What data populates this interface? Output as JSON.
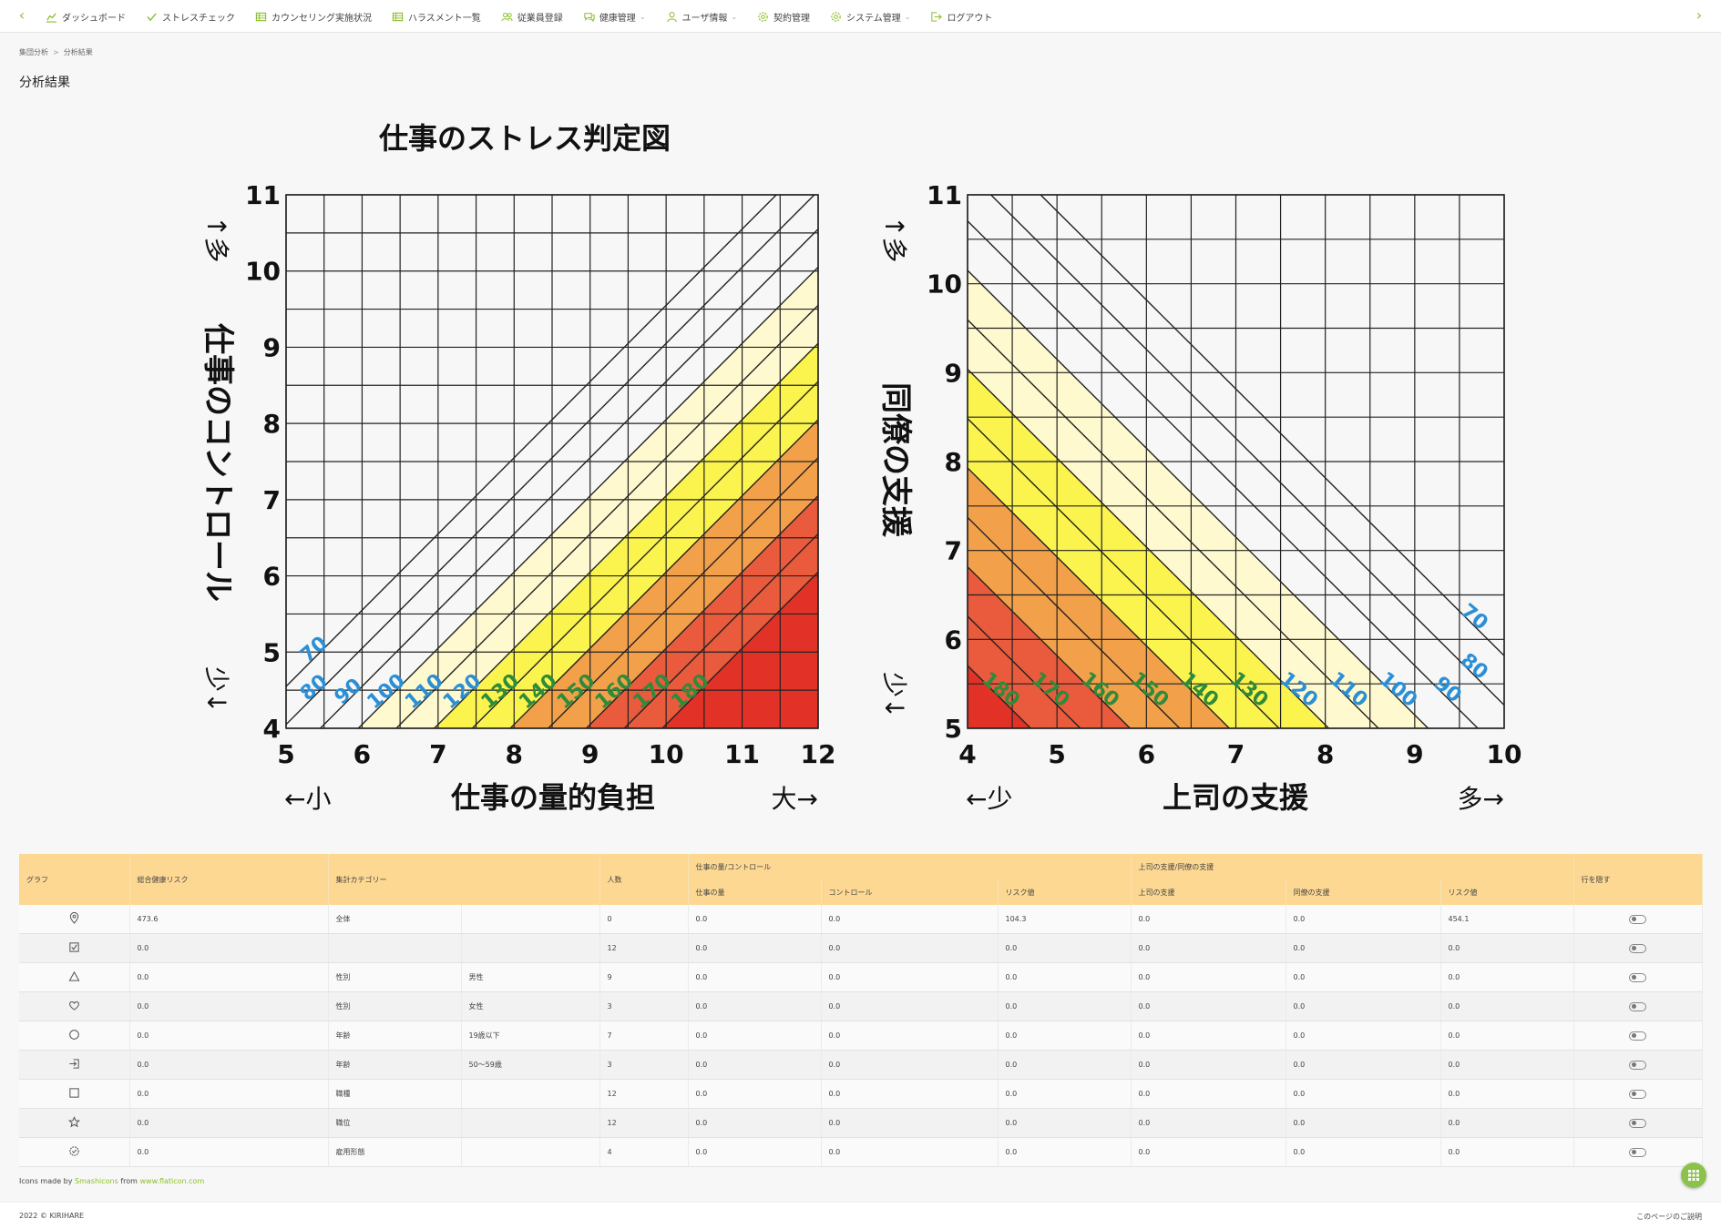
{
  "nav": {
    "prev_icon": "chevron-left-icon",
    "next_icon": "chevron-right-icon",
    "accent": "#8bbf2a",
    "items": [
      {
        "label": "ダッシュボード",
        "icon": "chart-icon",
        "caret": false
      },
      {
        "label": "ストレスチェック",
        "icon": "check-icon",
        "caret": false
      },
      {
        "label": "カウンセリング実施状況",
        "icon": "table-icon",
        "caret": false
      },
      {
        "label": "ハラスメント一覧",
        "icon": "table-icon",
        "caret": false
      },
      {
        "label": "従業員登録",
        "icon": "users-icon",
        "caret": false
      },
      {
        "label": "健康管理",
        "icon": "chat-icon",
        "caret": true
      },
      {
        "label": "ユーザ情報",
        "icon": "user-icon",
        "caret": true
      },
      {
        "label": "契約管理",
        "icon": "gear-icon",
        "caret": false
      },
      {
        "label": "システム管理",
        "icon": "gear-icon",
        "caret": true
      },
      {
        "label": "ログアウト",
        "icon": "logout-icon",
        "caret": false
      }
    ]
  },
  "breadcrumb": {
    "items": [
      "集団分析",
      "分析結果"
    ],
    "separator": ">"
  },
  "page": {
    "title": "分析結果"
  },
  "figure": {
    "title": "仕事のストレス判定図",
    "left": {
      "y_label": "仕事のコントロール",
      "y_more": "↑多",
      "y_less": "少↓",
      "x_label": "仕事の量的負担",
      "x_less": "←小",
      "x_more": "大→"
    },
    "right": {
      "y_label": "同僚の支援",
      "y_more": "↑多",
      "y_less": "少↓",
      "x_label": "上司の支援",
      "x_less": "←少",
      "x_more": "多→"
    }
  },
  "chart_data": [
    {
      "type": "heatmap",
      "x": {
        "min": 5,
        "max": 12,
        "ticks": [
          5,
          6,
          7,
          8,
          9,
          10,
          11,
          12
        ]
      },
      "y": {
        "min": 4,
        "max": 11,
        "ticks": [
          4,
          5,
          6,
          7,
          8,
          9,
          10,
          11
        ]
      },
      "risk_lines": [
        70,
        80,
        90,
        100,
        110,
        120,
        130,
        140,
        150,
        160,
        170,
        180
      ],
      "zone_colors": [
        "#ffffff",
        "#fff9cf",
        "#fbf44f",
        "#f3a04a",
        "#ea5a3c",
        "#e23228"
      ]
    },
    {
      "type": "heatmap",
      "x": {
        "min": 4,
        "max": 10,
        "ticks": [
          4,
          5,
          6,
          7,
          8,
          9,
          10
        ]
      },
      "y": {
        "min": 5,
        "max": 11,
        "ticks": [
          5,
          6,
          7,
          8,
          9,
          10,
          11
        ]
      },
      "risk_lines": [
        70,
        80,
        90,
        100,
        110,
        120,
        130,
        140,
        150,
        160,
        170,
        180
      ],
      "zone_colors": [
        "#ffffff",
        "#fff9cf",
        "#fbf44f",
        "#f3a04a",
        "#ea5a3c",
        "#e23228"
      ]
    }
  ],
  "table": {
    "group_headers": {
      "work": "仕事の量/コントロール",
      "support": "上司の支援/同僚の支援"
    },
    "headers": {
      "graph": "グラフ",
      "total_risk": "総合健康リスク",
      "category": "集計カテゴリー",
      "count": "人数",
      "work_amount": "仕事の量",
      "control": "コントロール",
      "risk1": "リスク値",
      "boss_support": "上司の支援",
      "peer_support": "同僚の支援",
      "risk2": "リスク値",
      "hide": "行を隠す"
    },
    "rows": [
      {
        "icon": "pin-icon",
        "total": "473.6",
        "cat": "全体",
        "sub": "",
        "count": "0",
        "amount": "0.0",
        "control": "0.0",
        "risk1": "104.3",
        "boss": "0.0",
        "peer": "0.0",
        "risk2": "454.1"
      },
      {
        "icon": "checkbox-icon",
        "total": "0.0",
        "cat": "",
        "sub": "",
        "count": "12",
        "amount": "0.0",
        "control": "0.0",
        "risk1": "0.0",
        "boss": "0.0",
        "peer": "0.0",
        "risk2": "0.0"
      },
      {
        "icon": "triangle-icon",
        "total": "0.0",
        "cat": "性別",
        "sub": "男性",
        "count": "9",
        "amount": "0.0",
        "control": "0.0",
        "risk1": "0.0",
        "boss": "0.0",
        "peer": "0.0",
        "risk2": "0.0"
      },
      {
        "icon": "heart-icon",
        "total": "0.0",
        "cat": "性別",
        "sub": "女性",
        "count": "3",
        "amount": "0.0",
        "control": "0.0",
        "risk1": "0.0",
        "boss": "0.0",
        "peer": "0.0",
        "risk2": "0.0"
      },
      {
        "icon": "circle-icon",
        "total": "0.0",
        "cat": "年齢",
        "sub": "19歳以下",
        "count": "7",
        "amount": "0.0",
        "control": "0.0",
        "risk1": "0.0",
        "boss": "0.0",
        "peer": "0.0",
        "risk2": "0.0"
      },
      {
        "icon": "login-icon",
        "total": "0.0",
        "cat": "年齢",
        "sub": "50〜59歳",
        "count": "3",
        "amount": "0.0",
        "control": "0.0",
        "risk1": "0.0",
        "boss": "0.0",
        "peer": "0.0",
        "risk2": "0.0"
      },
      {
        "icon": "square-icon",
        "total": "0.0",
        "cat": "職種",
        "sub": "",
        "count": "12",
        "amount": "0.0",
        "control": "0.0",
        "risk1": "0.0",
        "boss": "0.0",
        "peer": "0.0",
        "risk2": "0.0"
      },
      {
        "icon": "star-icon",
        "total": "0.0",
        "cat": "職位",
        "sub": "",
        "count": "12",
        "amount": "0.0",
        "control": "0.0",
        "risk1": "0.0",
        "boss": "0.0",
        "peer": "0.0",
        "risk2": "0.0"
      },
      {
        "icon": "badge-icon",
        "total": "0.0",
        "cat": "雇用形態",
        "sub": "",
        "count": "4",
        "amount": "0.0",
        "control": "0.0",
        "risk1": "0.0",
        "boss": "0.0",
        "peer": "0.0",
        "risk2": "0.0"
      }
    ]
  },
  "credit": {
    "prefix": "Icons made by",
    "author": "Smashicons",
    "mid": "from",
    "site": "www.flaticon.com"
  },
  "fab": {
    "icon": "grid-icon"
  },
  "footer": {
    "copyright": "2022 © KIRIHARE",
    "help": "このページのご説明"
  }
}
